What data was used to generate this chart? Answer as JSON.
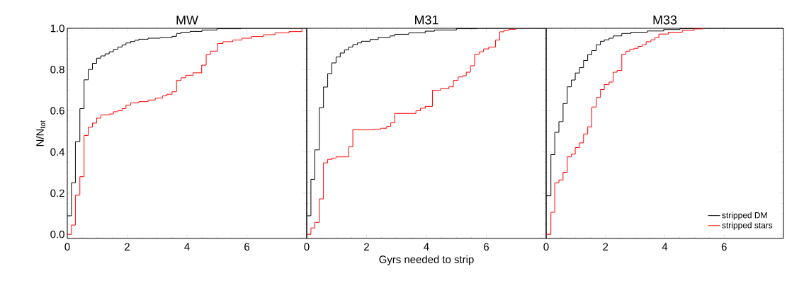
{
  "chart_data": [
    {
      "type": "step",
      "title": "MW",
      "ylabel": "N/N$_{tot}$",
      "xlim": [
        0,
        8
      ],
      "ylim": [
        -0.02,
        1.0
      ],
      "xticks": [
        0,
        2,
        4,
        6
      ],
      "yticks": [
        {
          "value": 0,
          "label": "0.0"
        },
        0.2,
        0.4,
        0.6,
        0.8,
        {
          "value": 1,
          "label": "1.0"
        }
      ],
      "line_style": "solid",
      "marker": "none",
      "series": [
        {
          "color": "#000000",
          "x": [
            0,
            0.14,
            0.27,
            0.42,
            0.56,
            0.7,
            0.84,
            0.98,
            1.12,
            1.26,
            1.4,
            1.54,
            1.69,
            1.83,
            1.96,
            2.12,
            2.26,
            2.39,
            2.7,
            3.1,
            3.5,
            3.65,
            3.8,
            4.1,
            4.5,
            5.0,
            5.8,
            8
          ],
          "values": [
            0.09,
            0.25,
            0.45,
            0.61,
            0.75,
            0.8,
            0.83,
            0.855,
            0.866,
            0.876,
            0.886,
            0.898,
            0.909,
            0.919,
            0.929,
            0.936,
            0.942,
            0.947,
            0.952,
            0.955,
            0.961,
            0.975,
            0.981,
            0.985,
            0.992,
            0.998,
            1.0,
            1.0
          ]
        },
        {
          "color": "#ff0000",
          "x": [
            0,
            0.14,
            0.27,
            0.42,
            0.56,
            0.7,
            0.84,
            0.98,
            1.12,
            1.4,
            1.54,
            1.69,
            1.83,
            1.96,
            2.12,
            2.39,
            2.7,
            2.94,
            3.18,
            3.33,
            3.5,
            3.65,
            3.8,
            3.96,
            4.2,
            4.49,
            4.64,
            4.78,
            5.02,
            5.2,
            5.53,
            5.84,
            6.16,
            6.55,
            6.94,
            7.41,
            7.84
          ],
          "values": [
            0.0,
            0.045,
            0.19,
            0.28,
            0.48,
            0.52,
            0.54,
            0.564,
            0.58,
            0.584,
            0.595,
            0.6,
            0.61,
            0.627,
            0.638,
            0.644,
            0.652,
            0.661,
            0.672,
            0.68,
            0.692,
            0.747,
            0.76,
            0.772,
            0.784,
            0.821,
            0.872,
            0.889,
            0.926,
            0.935,
            0.943,
            0.952,
            0.96,
            0.969,
            0.978,
            0.984,
            0.997
          ]
        }
      ]
    },
    {
      "type": "step",
      "title": "M31",
      "xlabel": "Gyrs needed to strip",
      "xlim": [
        0,
        8
      ],
      "ylim": [
        -0.02,
        1.0
      ],
      "xticks": [
        0,
        2,
        4,
        6
      ],
      "yticks": [
        0.0,
        0.2,
        0.4,
        0.6,
        0.8,
        1.0
      ],
      "tick_labels": "x",
      "line_style": "solid",
      "marker": "none",
      "series": [
        {
          "color": "#000000",
          "x": [
            0,
            0.14,
            0.27,
            0.42,
            0.56,
            0.7,
            0.84,
            0.98,
            1.12,
            1.26,
            1.4,
            1.54,
            1.69,
            1.83,
            2.12,
            2.39,
            2.78,
            2.94,
            3.41,
            3.96,
            4.27,
            5.0,
            5.69,
            8
          ],
          "values": [
            0.09,
            0.267,
            0.41,
            0.615,
            0.715,
            0.78,
            0.832,
            0.861,
            0.88,
            0.895,
            0.909,
            0.921,
            0.929,
            0.937,
            0.946,
            0.955,
            0.963,
            0.971,
            0.978,
            0.986,
            0.992,
            0.998,
            1.0,
            1.0
          ]
        },
        {
          "color": "#ff0000",
          "x": [
            0,
            0.14,
            0.27,
            0.42,
            0.56,
            0.7,
            0.84,
            0.98,
            1.4,
            1.54,
            2.24,
            2.47,
            2.67,
            2.8,
            2.94,
            3.65,
            3.8,
            3.96,
            4.2,
            4.47,
            4.75,
            4.9,
            5.06,
            5.22,
            5.33,
            5.47,
            5.61,
            5.77,
            5.91,
            6.08,
            6.31,
            6.45,
            6.59,
            6.75,
            6.98
          ],
          "values": [
            0.0,
            0.031,
            0.058,
            0.172,
            0.347,
            0.364,
            0.37,
            0.376,
            0.425,
            0.507,
            0.51,
            0.515,
            0.524,
            0.541,
            0.587,
            0.6,
            0.612,
            0.621,
            0.699,
            0.707,
            0.716,
            0.747,
            0.764,
            0.77,
            0.787,
            0.818,
            0.874,
            0.886,
            0.9,
            0.909,
            0.943,
            0.983,
            0.99,
            0.995,
            1.0
          ]
        }
      ]
    },
    {
      "type": "step",
      "title": "M33",
      "xlim": [
        0,
        8
      ],
      "ylim": [
        -0.02,
        1.0
      ],
      "xticks": [
        0,
        2,
        4,
        6
      ],
      "yticks": [
        0.0,
        0.2,
        0.4,
        0.6,
        0.8,
        1.0
      ],
      "tick_labels": "x",
      "legend": "bottom right",
      "line_style": "solid",
      "marker": "none",
      "series": [
        {
          "name": "stripped DM",
          "color": "#000000",
          "x": [
            0,
            0.16,
            0.29,
            0.43,
            0.57,
            0.71,
            0.85,
            0.98,
            1.12,
            1.26,
            1.4,
            1.54,
            1.69,
            1.83,
            1.96,
            2.12,
            2.26,
            2.55,
            2.86,
            3.41,
            3.96,
            4.51,
            5.22,
            8
          ],
          "values": [
            0.187,
            0.387,
            0.495,
            0.547,
            0.635,
            0.716,
            0.749,
            0.783,
            0.809,
            0.844,
            0.872,
            0.892,
            0.92,
            0.937,
            0.944,
            0.952,
            0.963,
            0.975,
            0.981,
            0.987,
            0.994,
            0.998,
            1.0,
            1.0
          ]
        },
        {
          "name": "stripped stars",
          "color": "#ff0000",
          "x": [
            0,
            0.16,
            0.29,
            0.43,
            0.57,
            0.71,
            0.85,
            0.98,
            1.12,
            1.26,
            1.4,
            1.54,
            1.69,
            1.83,
            1.96,
            2.12,
            2.26,
            2.39,
            2.55,
            2.69,
            2.82,
            2.96,
            3.1,
            3.24,
            3.37,
            3.53,
            3.67,
            3.8,
            4.12,
            4.59,
            4.98,
            5.29
          ],
          "values": [
            0.0,
            0.107,
            0.25,
            0.264,
            0.301,
            0.376,
            0.389,
            0.421,
            0.444,
            0.487,
            0.522,
            0.618,
            0.664,
            0.703,
            0.727,
            0.739,
            0.787,
            0.795,
            0.874,
            0.889,
            0.898,
            0.903,
            0.912,
            0.92,
            0.935,
            0.944,
            0.955,
            0.972,
            0.981,
            0.99,
            0.997,
            1.0
          ]
        }
      ]
    }
  ]
}
